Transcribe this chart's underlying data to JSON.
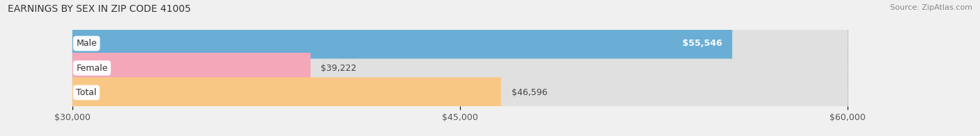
{
  "title": "EARNINGS BY SEX IN ZIP CODE 41005",
  "source": "Source: ZipAtlas.com",
  "categories": [
    "Male",
    "Female",
    "Total"
  ],
  "values": [
    55546,
    39222,
    46596
  ],
  "bar_colors": [
    "#6aaed6",
    "#f4a7b9",
    "#f9c784"
  ],
  "value_labels": [
    "$55,546",
    "$39,222",
    "$46,596"
  ],
  "value_inside": [
    true,
    false,
    false
  ],
  "xmin": 30000,
  "xmax": 60000,
  "xticks": [
    30000,
    45000,
    60000
  ],
  "xticklabels": [
    "$30,000",
    "$45,000",
    "$60,000"
  ],
  "background_color": "#f0f0f0",
  "bar_bg_color": "#e0e0e0",
  "title_fontsize": 10,
  "source_fontsize": 8,
  "tick_fontsize": 9,
  "cat_fontsize": 9,
  "val_fontsize": 9
}
